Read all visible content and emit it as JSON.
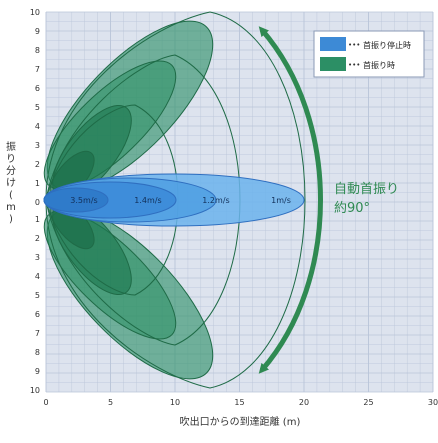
{
  "chart_data": {
    "type": "diagram",
    "y_axis": {
      "label": "振り分け(m)",
      "ticks_up": [
        "10",
        "9",
        "8",
        "7",
        "6",
        "5",
        "4",
        "3",
        "2",
        "1",
        "0"
      ],
      "ticks_down": [
        "1",
        "2",
        "3",
        "4",
        "5",
        "6",
        "7",
        "8",
        "9",
        "10"
      ]
    },
    "x_axis": {
      "label": "吹出口からの到達距離 (m)",
      "ticks": [
        "0",
        "5",
        "10",
        "15",
        "20",
        "25",
        "30"
      ]
    },
    "zone_labels": [
      {
        "text": "3.5m/s"
      },
      {
        "text": "1.4m/s"
      },
      {
        "text": "1.2m/s"
      },
      {
        "text": "1m/s"
      }
    ],
    "legend": [
      {
        "label": "首振り停止時",
        "color": "#3d8ad6"
      },
      {
        "label": "首振り時",
        "color": "#2c8f65"
      }
    ],
    "annotation": {
      "line1": "自動首振り",
      "line2": "約90°"
    },
    "colors": {
      "plot_bg": "#dde3ee",
      "grid": "#b9c4d8",
      "blue_fill": "#6bb3ec",
      "blue_edge": "#2f6fc0",
      "green_fill": "#3e9a72",
      "green_edge": "#1f6b47",
      "arrow": "#2f8a52"
    }
  }
}
